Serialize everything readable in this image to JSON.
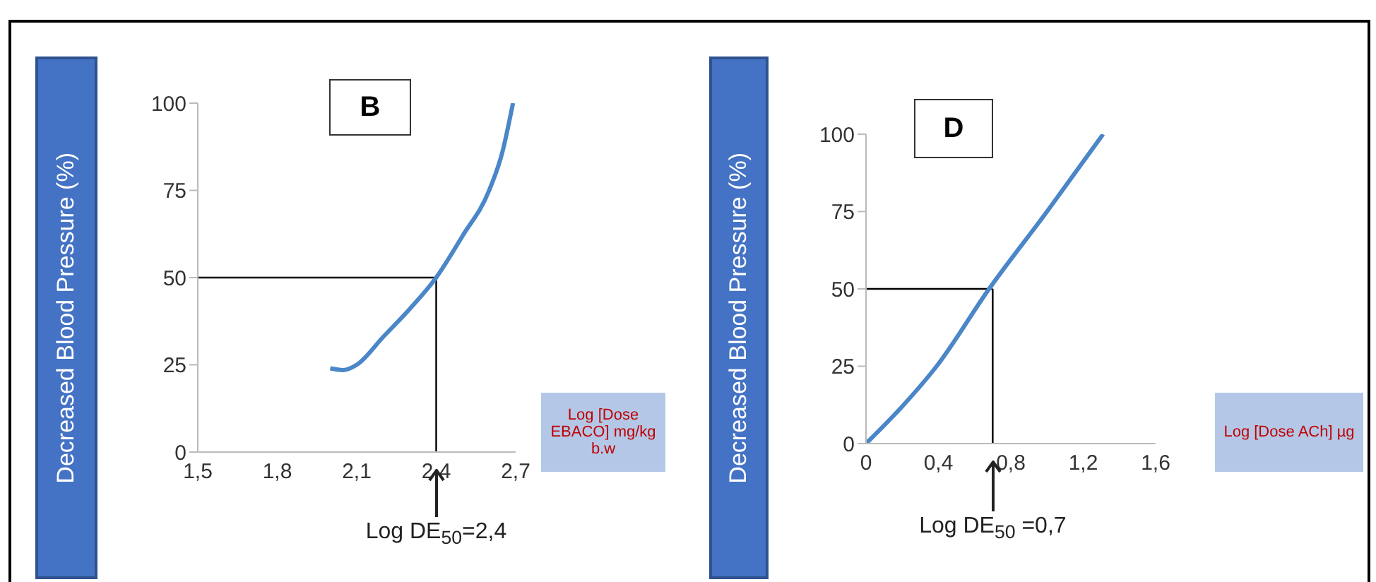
{
  "chart_data": [
    {
      "type": "line",
      "title": "B",
      "xlabel": "Log [Dose EBACO] mg/kg b.w",
      "ylabel": "Decreased Blood Pressure (%)",
      "x": [
        2.0,
        2.05,
        2.1,
        2.2,
        2.3,
        2.4,
        2.5,
        2.6,
        2.65,
        2.69
      ],
      "series": [
        {
          "color": "#4a86c8",
          "values": [
            24,
            23.5,
            25,
            33,
            41,
            50,
            62,
            75,
            86,
            100
          ]
        }
      ],
      "xlim": [
        1.5,
        2.7
      ],
      "xticks": [
        {
          "value": 1.5,
          "label": "1,5"
        },
        {
          "value": 1.8,
          "label": "1,8"
        },
        {
          "value": 2.1,
          "label": "2,1"
        },
        {
          "value": 2.4,
          "label": "2,4"
        },
        {
          "value": 2.7,
          "label": "2,7"
        }
      ],
      "ylim": [
        0,
        100
      ],
      "yticks": [
        0,
        25,
        50,
        75,
        100
      ],
      "ref_lines": [
        {
          "axis": "y",
          "value": 50,
          "color": "#000000"
        },
        {
          "axis": "x",
          "value": 2.4,
          "color": "#000000"
        }
      ],
      "annotations": [
        "Log DE$_{50}$=2,4"
      ],
      "grid": false,
      "legend": false,
      "marker": "none",
      "line_style": "solid"
    },
    {
      "type": "line",
      "title": "D",
      "xlabel": "Log [Dose ACh] µg",
      "ylabel": "Decreased Blood Pressure (%)",
      "x": [
        0,
        0.2,
        0.39,
        0.68,
        1.0,
        1.31
      ],
      "series": [
        {
          "color": "#4a86c8",
          "values": [
            0,
            12,
            25,
            50,
            75,
            100
          ]
        }
      ],
      "xlim": [
        0,
        1.6
      ],
      "xticks": [
        0,
        {
          "value": 0.4,
          "label": "0,4"
        },
        {
          "value": 0.8,
          "label": "0,8"
        },
        {
          "value": 1.2,
          "label": "1,2"
        },
        {
          "value": 1.6,
          "label": "1,6"
        }
      ],
      "ylim": [
        0,
        100
      ],
      "yticks": [
        0,
        25,
        50,
        75,
        100
      ],
      "ref_lines": [
        {
          "axis": "y",
          "value": 50,
          "color": "#000000"
        },
        {
          "axis": "x",
          "value": 0.7,
          "color": "#000000"
        }
      ],
      "annotations": [
        "Log DE$_{50}$ =0,7"
      ],
      "grid": false,
      "legend": false,
      "marker": "none",
      "line_style": "solid"
    }
  ]
}
